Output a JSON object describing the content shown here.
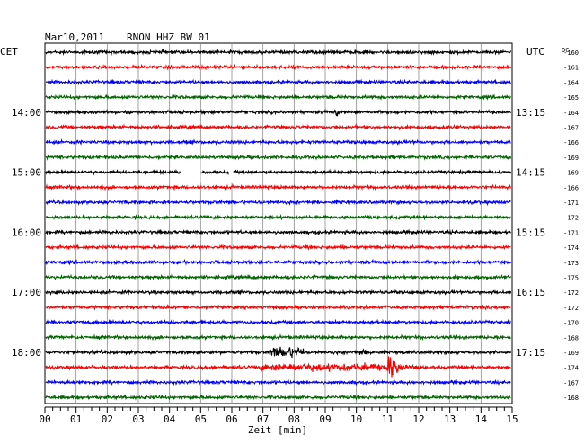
{
  "header": {
    "date": "Mar10,2011",
    "station": "RNON HHZ BW 01",
    "left_zone": "CET",
    "right_zone": "UTC",
    "dc_label": "DC"
  },
  "chart_data": {
    "type": "line",
    "title": "Mar10,2011   RNON HHZ BW 01",
    "xlabel": "Zeit [min]",
    "ylabel": "",
    "xlim": [
      0,
      15
    ],
    "x_ticks": [
      "00",
      "01",
      "02",
      "03",
      "04",
      "05",
      "06",
      "07",
      "08",
      "09",
      "10",
      "11",
      "12",
      "13",
      "14",
      "15"
    ],
    "grid": true,
    "row_count": 24,
    "row_colors": [
      "#000000",
      "#ff0000",
      "#0000ff",
      "#006400"
    ],
    "left_time_labels": [
      {
        "row": 4,
        "label": "14:00"
      },
      {
        "row": 8,
        "label": "15:00"
      },
      {
        "row": 12,
        "label": "16:00"
      },
      {
        "row": 16,
        "label": "17:00"
      },
      {
        "row": 20,
        "label": "18:00"
      }
    ],
    "right_time_labels": [
      {
        "row": 4,
        "label": "13:15"
      },
      {
        "row": 8,
        "label": "14:15"
      },
      {
        "row": 12,
        "label": "15:15"
      },
      {
        "row": 16,
        "label": "16:15"
      },
      {
        "row": 20,
        "label": "17:15"
      }
    ],
    "dc_offsets": [
      "-160",
      "-161",
      "-164",
      "-165",
      "-164",
      "-167",
      "-166",
      "-169",
      "-169",
      "-166",
      "-171",
      "-172",
      "-171",
      "-174",
      "-173",
      "-175",
      "-172",
      "-172",
      "-170",
      "-168",
      "-169",
      "-174",
      "-167",
      "-168"
    ],
    "data_gaps": [
      {
        "row": 8,
        "start_min": 4.35,
        "end_min": 5.0
      },
      {
        "row": 8,
        "start_min": 5.9,
        "end_min": 6.05
      }
    ],
    "events": [
      {
        "row": 20,
        "start_min": 7.2,
        "end_min": 8.3,
        "amplitude": "medium"
      },
      {
        "row": 20,
        "start_min": 10.1,
        "end_min": 10.4,
        "amplitude": "small"
      },
      {
        "row": 21,
        "start_min": 6.9,
        "end_min": 11.0,
        "amplitude": "small"
      },
      {
        "row": 21,
        "start_min": 11.0,
        "end_min": 12.2,
        "amplitude": "large"
      },
      {
        "row": 4,
        "start_min": 9.3,
        "end_min": 9.4,
        "amplitude": "small"
      }
    ]
  }
}
